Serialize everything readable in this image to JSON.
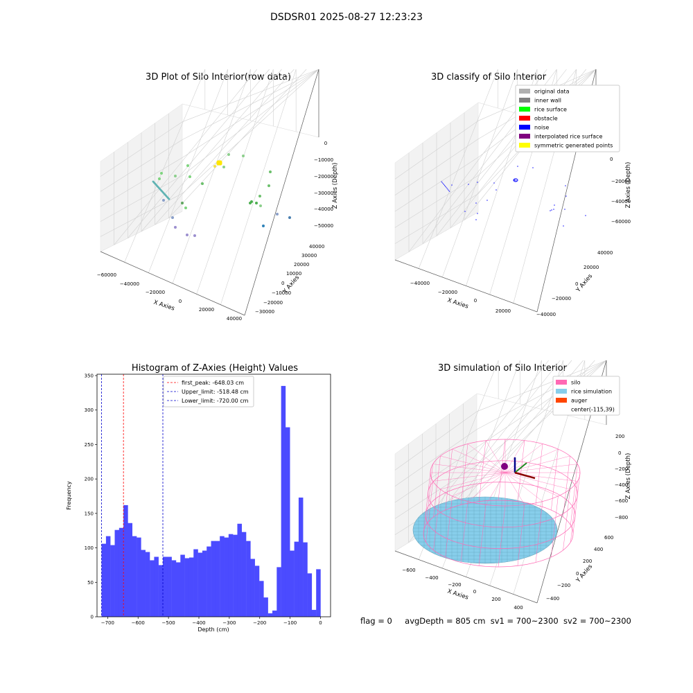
{
  "figure": {
    "title": "DSDSR01 2025-08-27 12:23:23",
    "footer": {
      "flag": "flag = 0",
      "avg_depth": "avgDepth = 805 cm",
      "sv1": "sv1 = 700~2300",
      "sv2": "sv2 = 700~2300"
    }
  },
  "colors": {
    "hist_bar": "#4b4bff",
    "first_peak": "#ff0000",
    "limit": "#0000cc",
    "silo": "#ff69b4",
    "rice": "#87ceeb",
    "auger": "#ff4500"
  },
  "chart_data": [
    {
      "type": "scatter",
      "projection": "3d",
      "title": "3D Plot of Silo Interior(row data)",
      "xlabel": "X Axies",
      "ylabel": "Y Axies",
      "zlabel": "Z Axies (Depth)",
      "x_ticks": [
        "−60000",
        "−40000",
        "−20000",
        "0",
        "20000",
        "40000"
      ],
      "y_ticks": [
        "−30000",
        "−20000",
        "−10000",
        "0",
        "10000",
        "20000",
        "30000",
        "40000"
      ],
      "z_ticks": [
        "0",
        "−10000",
        "−20000",
        "−30000",
        "−40000",
        "−50000"
      ],
      "grid": true
    },
    {
      "type": "scatter",
      "projection": "3d",
      "title": "3D classify of Silo Interior",
      "xlabel": "X Axies",
      "ylabel": "Y Axies",
      "zlabel": "Z Axies (Depth)",
      "x_ticks": [
        "−40000",
        "−20000",
        "0",
        "20000"
      ],
      "y_ticks": [
        "−40000",
        "−20000",
        "0",
        "20000",
        "40000"
      ],
      "z_ticks": [
        "0",
        "−20000",
        "−40000",
        "−60000"
      ],
      "legend": [
        {
          "label": "original data",
          "color": "#b0b0b0"
        },
        {
          "label": "inner wall",
          "color": "#808080"
        },
        {
          "label": "rice surface",
          "color": "#00ff00"
        },
        {
          "label": "obstacle",
          "color": "#ff0000"
        },
        {
          "label": "noise",
          "color": "#0000ff"
        },
        {
          "label": "interpolated rice surface",
          "color": "#800080"
        },
        {
          "label": "symmetric generated points",
          "color": "#ffff00"
        }
      ],
      "legend_loc": "upper right",
      "grid": true
    },
    {
      "type": "bar",
      "title": "Histogram of Z-Axies (Height) Values",
      "xlabel": "Depth (cm)",
      "ylabel": "Frequency",
      "xlim": [
        -735,
        33
      ],
      "ylim": [
        0,
        352
      ],
      "x_ticks": [
        -700,
        -600,
        -500,
        -400,
        -300,
        -200,
        -100,
        0
      ],
      "x_tick_labels": [
        "−700",
        "−600",
        "−500",
        "−400",
        "−300",
        "−200",
        "−100",
        "0"
      ],
      "y_ticks": [
        0,
        50,
        100,
        150,
        200,
        250,
        300,
        350
      ],
      "bin_start": -720,
      "bin_width": 14.4,
      "values": [
        106,
        117,
        104,
        126,
        129,
        162,
        136,
        117,
        115,
        97,
        94,
        82,
        87,
        75,
        87,
        87,
        82,
        79,
        90,
        85,
        86,
        98,
        93,
        96,
        102,
        110,
        110,
        117,
        115,
        120,
        119,
        135,
        123,
        110,
        84,
        74,
        52,
        28,
        5,
        9,
        72,
        335,
        275,
        96,
        109,
        173,
        108,
        63,
        10,
        69
      ],
      "vlines": [
        {
          "x": -648.03,
          "label": "first_peak: -648.03 cm",
          "color": "#ff0000"
        },
        {
          "x": -518.48,
          "label": "Upper_limit: -518.48 cm",
          "color": "#0000cc"
        },
        {
          "x": -720.0,
          "label": "Lower_limit: -720.00 cm",
          "color": "#0000cc"
        }
      ],
      "legend_loc": "upper center"
    },
    {
      "type": "surface",
      "projection": "3d",
      "title": "3D simulation of Silo Interior",
      "xlabel": "X Axies",
      "ylabel": "Y Axies",
      "zlabel": "Z Axies (Depth)",
      "x_ticks": [
        "−600",
        "−400",
        "−200",
        "0",
        "200",
        "400"
      ],
      "y_ticks": [
        "−400",
        "−200",
        "0",
        "200",
        "400",
        "600"
      ],
      "z_ticks": [
        "200",
        "0",
        "−200",
        "−400",
        "−600",
        "−800"
      ],
      "legend": [
        {
          "label": "silo",
          "color": "#ff69b4"
        },
        {
          "label": "rice simulation",
          "color": "#87ceeb"
        },
        {
          "label": "auger",
          "color": "#ff4500"
        },
        {
          "label": "center(-115,39)",
          "color": "none"
        }
      ],
      "legend_loc": "upper right"
    }
  ]
}
